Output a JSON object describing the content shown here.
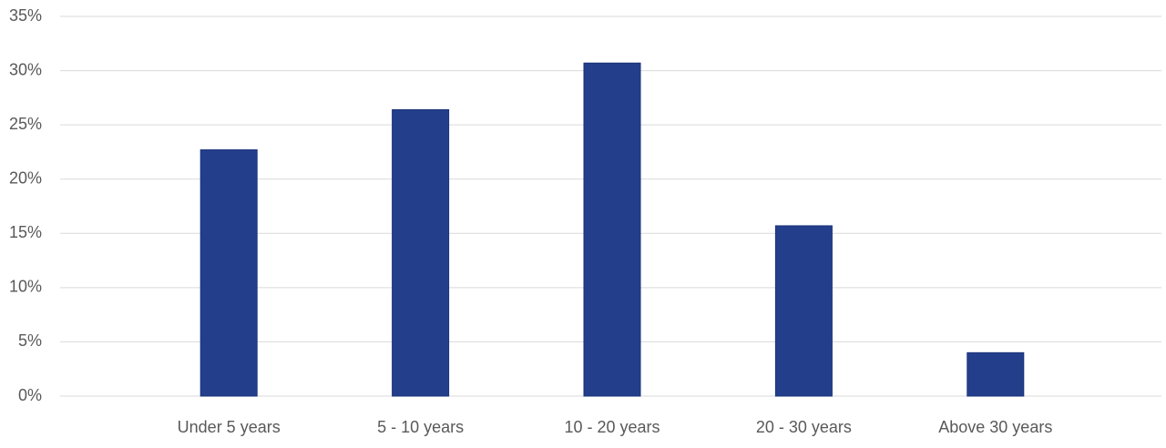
{
  "chart_data": {
    "type": "bar",
    "categories": [
      "Under 5 years",
      "5 - 10 years",
      "10 - 20 years",
      "20 - 30 years",
      "Above 30 years"
    ],
    "values": [
      22.7,
      26.4,
      30.7,
      15.7,
      4.0
    ],
    "color": "#233f8c",
    "ylim": [
      0,
      35
    ],
    "yticks": [
      {
        "value": 0,
        "label": "0%"
      },
      {
        "value": 5,
        "label": "5%"
      },
      {
        "value": 10,
        "label": "10%"
      },
      {
        "value": 15,
        "label": "15%"
      },
      {
        "value": 20,
        "label": "20%"
      },
      {
        "value": 25,
        "label": "25%"
      },
      {
        "value": 30,
        "label": "30%"
      },
      {
        "value": 35,
        "label": "35%"
      }
    ],
    "grid": true
  }
}
